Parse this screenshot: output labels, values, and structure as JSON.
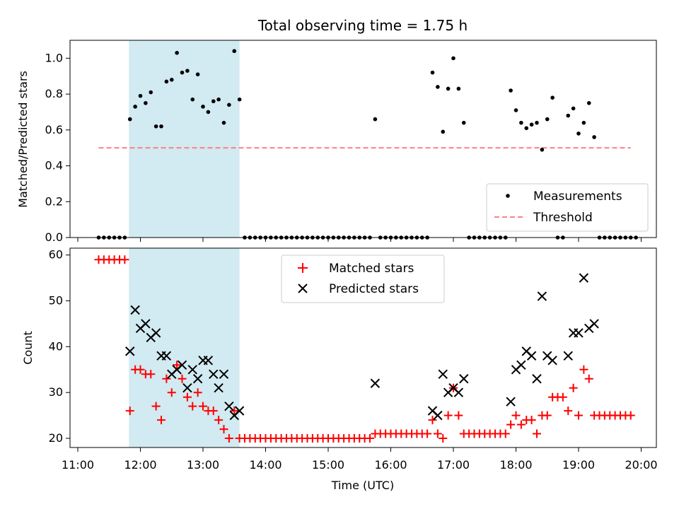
{
  "chart_data": [
    {
      "type": "scatter",
      "title": "Total observing time = 1.75 h",
      "ylabel": "Matched/Predicted stars",
      "xlabel": "",
      "ylim": [
        0,
        1.1
      ],
      "yticks": [
        "0.0",
        "0.2",
        "0.4",
        "0.6",
        "0.8",
        "1.0"
      ],
      "shaded_span": [
        "11:49",
        "13:35"
      ],
      "legend_position": "lower-right",
      "series": [
        {
          "name": "Measurements",
          "marker": "dot",
          "color": "#000000",
          "points": [
            [
              "11:20",
              0
            ],
            [
              "11:25",
              0
            ],
            [
              "11:30",
              0
            ],
            [
              "11:35",
              0
            ],
            [
              "11:40",
              0
            ],
            [
              "11:45",
              0
            ],
            [
              "11:50",
              0.66
            ],
            [
              "11:55",
              0.73
            ],
            [
              "12:00",
              0.79
            ],
            [
              "12:05",
              0.75
            ],
            [
              "12:10",
              0.81
            ],
            [
              "12:15",
              0.62
            ],
            [
              "12:20",
              0.62
            ],
            [
              "12:25",
              0.87
            ],
            [
              "12:30",
              0.88
            ],
            [
              "12:35",
              1.03
            ],
            [
              "12:40",
              0.92
            ],
            [
              "12:45",
              0.93
            ],
            [
              "12:50",
              0.77
            ],
            [
              "12:55",
              0.91
            ],
            [
              "13:00",
              0.73
            ],
            [
              "13:05",
              0.7
            ],
            [
              "13:10",
              0.76
            ],
            [
              "13:15",
              0.77
            ],
            [
              "13:20",
              0.64
            ],
            [
              "13:25",
              0.74
            ],
            [
              "13:30",
              1.04
            ],
            [
              "13:35",
              0.77
            ],
            [
              "13:40",
              0
            ],
            [
              "13:45",
              0
            ],
            [
              "13:50",
              0
            ],
            [
              "13:55",
              0
            ],
            [
              "14:00",
              0
            ],
            [
              "14:05",
              0
            ],
            [
              "14:10",
              0
            ],
            [
              "14:15",
              0
            ],
            [
              "14:20",
              0
            ],
            [
              "14:25",
              0
            ],
            [
              "14:30",
              0
            ],
            [
              "14:35",
              0
            ],
            [
              "14:40",
              0
            ],
            [
              "14:45",
              0
            ],
            [
              "14:50",
              0
            ],
            [
              "14:55",
              0
            ],
            [
              "15:00",
              0
            ],
            [
              "15:05",
              0
            ],
            [
              "15:10",
              0
            ],
            [
              "15:15",
              0
            ],
            [
              "15:20",
              0
            ],
            [
              "15:25",
              0
            ],
            [
              "15:30",
              0
            ],
            [
              "15:35",
              0
            ],
            [
              "15:40",
              0
            ],
            [
              "15:45",
              0.66
            ],
            [
              "15:50",
              0
            ],
            [
              "15:55",
              0
            ],
            [
              "16:00",
              0
            ],
            [
              "16:05",
              0
            ],
            [
              "16:10",
              0
            ],
            [
              "16:15",
              0
            ],
            [
              "16:20",
              0
            ],
            [
              "16:25",
              0
            ],
            [
              "16:30",
              0
            ],
            [
              "16:35",
              0
            ],
            [
              "16:40",
              0.92
            ],
            [
              "16:45",
              0.84
            ],
            [
              "16:50",
              0.59
            ],
            [
              "16:55",
              0.83
            ],
            [
              "17:00",
              1.0
            ],
            [
              "17:05",
              0.83
            ],
            [
              "17:10",
              0.64
            ],
            [
              "17:15",
              0
            ],
            [
              "17:20",
              0
            ],
            [
              "17:25",
              0
            ],
            [
              "17:30",
              0
            ],
            [
              "17:35",
              0
            ],
            [
              "17:40",
              0
            ],
            [
              "17:45",
              0
            ],
            [
              "17:50",
              0
            ],
            [
              "17:55",
              0.82
            ],
            [
              "18:00",
              0.71
            ],
            [
              "18:05",
              0.64
            ],
            [
              "18:10",
              0.61
            ],
            [
              "18:15",
              0.63
            ],
            [
              "18:20",
              0.64
            ],
            [
              "18:25",
              0.49
            ],
            [
              "18:30",
              0.66
            ],
            [
              "18:35",
              0.78
            ],
            [
              "18:40",
              0
            ],
            [
              "18:45",
              0
            ],
            [
              "18:50",
              0.68
            ],
            [
              "18:55",
              0.72
            ],
            [
              "19:00",
              0.58
            ],
            [
              "19:05",
              0.64
            ],
            [
              "19:10",
              0.75
            ],
            [
              "19:15",
              0.56
            ],
            [
              "19:20",
              0
            ],
            [
              "19:25",
              0
            ],
            [
              "19:30",
              0
            ],
            [
              "19:35",
              0
            ],
            [
              "19:40",
              0
            ],
            [
              "19:45",
              0
            ],
            [
              "19:50",
              0
            ],
            [
              "19:55",
              0
            ]
          ]
        },
        {
          "name": "Threshold",
          "marker": "dashed-line",
          "color": "#ff8080",
          "points": [
            [
              "11:20",
              0.5
            ],
            [
              "19:50",
              0.5
            ]
          ]
        }
      ]
    },
    {
      "type": "scatter",
      "title": "",
      "ylabel": "Count",
      "xlabel": "Time (UTC)",
      "ylim": [
        18,
        61.5
      ],
      "yticks": [
        "20",
        "30",
        "40",
        "50",
        "60"
      ],
      "xticks": [
        "11:00",
        "12:00",
        "13:00",
        "14:00",
        "15:00",
        "16:00",
        "17:00",
        "18:00",
        "19:00",
        "20:00"
      ],
      "shaded_span": [
        "11:49",
        "13:35"
      ],
      "legend_position": "upper-center",
      "series": [
        {
          "name": "Matched stars",
          "marker": "plus",
          "color": "#ff0000",
          "points": [
            [
              "11:20",
              59
            ],
            [
              "11:25",
              59
            ],
            [
              "11:30",
              59
            ],
            [
              "11:35",
              59
            ],
            [
              "11:40",
              59
            ],
            [
              "11:45",
              59
            ],
            [
              "11:50",
              26
            ],
            [
              "11:55",
              35
            ],
            [
              "12:00",
              35
            ],
            [
              "12:05",
              34
            ],
            [
              "12:10",
              34
            ],
            [
              "12:15",
              27
            ],
            [
              "12:20",
              24
            ],
            [
              "12:25",
              33
            ],
            [
              "12:30",
              30
            ],
            [
              "12:35",
              36
            ],
            [
              "12:40",
              33
            ],
            [
              "12:45",
              29
            ],
            [
              "12:50",
              27
            ],
            [
              "12:55",
              30
            ],
            [
              "13:00",
              27
            ],
            [
              "13:05",
              26
            ],
            [
              "13:10",
              26
            ],
            [
              "13:15",
              24
            ],
            [
              "13:20",
              22
            ],
            [
              "13:25",
              20
            ],
            [
              "13:30",
              26
            ],
            [
              "13:35",
              20
            ],
            [
              "13:40",
              20
            ],
            [
              "13:45",
              20
            ],
            [
              "13:50",
              20
            ],
            [
              "13:55",
              20
            ],
            [
              "14:00",
              20
            ],
            [
              "14:05",
              20
            ],
            [
              "14:10",
              20
            ],
            [
              "14:15",
              20
            ],
            [
              "14:20",
              20
            ],
            [
              "14:25",
              20
            ],
            [
              "14:30",
              20
            ],
            [
              "14:35",
              20
            ],
            [
              "14:40",
              20
            ],
            [
              "14:45",
              20
            ],
            [
              "14:50",
              20
            ],
            [
              "14:55",
              20
            ],
            [
              "15:00",
              20
            ],
            [
              "15:05",
              20
            ],
            [
              "15:10",
              20
            ],
            [
              "15:15",
              20
            ],
            [
              "15:20",
              20
            ],
            [
              "15:25",
              20
            ],
            [
              "15:30",
              20
            ],
            [
              "15:35",
              20
            ],
            [
              "15:40",
              20
            ],
            [
              "15:45",
              21
            ],
            [
              "15:50",
              21
            ],
            [
              "15:55",
              21
            ],
            [
              "16:00",
              21
            ],
            [
              "16:05",
              21
            ],
            [
              "16:10",
              21
            ],
            [
              "16:15",
              21
            ],
            [
              "16:20",
              21
            ],
            [
              "16:25",
              21
            ],
            [
              "16:30",
              21
            ],
            [
              "16:35",
              21
            ],
            [
              "16:40",
              24
            ],
            [
              "16:45",
              21
            ],
            [
              "16:50",
              20
            ],
            [
              "16:55",
              25
            ],
            [
              "17:00",
              31
            ],
            [
              "17:05",
              25
            ],
            [
              "17:10",
              21
            ],
            [
              "17:15",
              21
            ],
            [
              "17:20",
              21
            ],
            [
              "17:25",
              21
            ],
            [
              "17:30",
              21
            ],
            [
              "17:35",
              21
            ],
            [
              "17:40",
              21
            ],
            [
              "17:45",
              21
            ],
            [
              "17:50",
              21
            ],
            [
              "17:55",
              23
            ],
            [
              "18:00",
              25
            ],
            [
              "18:05",
              23
            ],
            [
              "18:10",
              24
            ],
            [
              "18:15",
              24
            ],
            [
              "18:20",
              21
            ],
            [
              "18:25",
              25
            ],
            [
              "18:30",
              25
            ],
            [
              "18:35",
              29
            ],
            [
              "18:40",
              29
            ],
            [
              "18:45",
              29
            ],
            [
              "18:50",
              26
            ],
            [
              "18:55",
              31
            ],
            [
              "19:00",
              25
            ],
            [
              "19:05",
              35
            ],
            [
              "19:10",
              33
            ],
            [
              "19:15",
              25
            ],
            [
              "19:20",
              25
            ],
            [
              "19:25",
              25
            ],
            [
              "19:30",
              25
            ],
            [
              "19:35",
              25
            ],
            [
              "19:40",
              25
            ],
            [
              "19:45",
              25
            ],
            [
              "19:50",
              25
            ]
          ]
        },
        {
          "name": "Predicted stars",
          "marker": "x",
          "color": "#000000",
          "points": [
            [
              "11:50",
              39
            ],
            [
              "11:55",
              48
            ],
            [
              "12:00",
              44
            ],
            [
              "12:05",
              45
            ],
            [
              "12:10",
              42
            ],
            [
              "12:15",
              43
            ],
            [
              "12:20",
              38
            ],
            [
              "12:25",
              38
            ],
            [
              "12:30",
              34
            ],
            [
              "12:35",
              35
            ],
            [
              "12:40",
              36
            ],
            [
              "12:45",
              31
            ],
            [
              "12:50",
              35
            ],
            [
              "12:55",
              33
            ],
            [
              "13:00",
              37
            ],
            [
              "13:05",
              37
            ],
            [
              "13:10",
              34
            ],
            [
              "13:15",
              31
            ],
            [
              "13:20",
              34
            ],
            [
              "13:25",
              27
            ],
            [
              "13:30",
              25
            ],
            [
              "13:35",
              26
            ],
            [
              "15:45",
              32
            ],
            [
              "16:40",
              26
            ],
            [
              "16:45",
              25
            ],
            [
              "16:50",
              34
            ],
            [
              "16:55",
              30
            ],
            [
              "17:00",
              31
            ],
            [
              "17:05",
              30
            ],
            [
              "17:10",
              33
            ],
            [
              "17:55",
              28
            ],
            [
              "18:00",
              35
            ],
            [
              "18:05",
              36
            ],
            [
              "18:10",
              39
            ],
            [
              "18:15",
              38
            ],
            [
              "18:20",
              33
            ],
            [
              "18:25",
              51
            ],
            [
              "18:30",
              38
            ],
            [
              "18:35",
              37
            ],
            [
              "18:50",
              38
            ],
            [
              "18:55",
              43
            ],
            [
              "19:00",
              43
            ],
            [
              "19:05",
              55
            ],
            [
              "19:10",
              44
            ],
            [
              "19:15",
              45
            ]
          ]
        }
      ]
    }
  ]
}
